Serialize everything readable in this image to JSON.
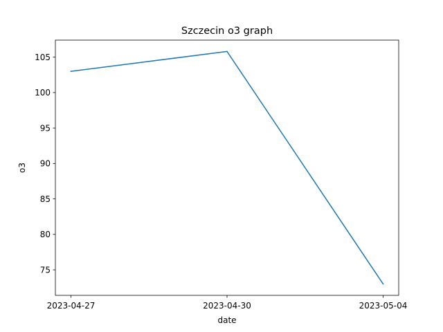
{
  "chart_data": {
    "type": "line",
    "title": "Szczecin o3 graph",
    "xlabel": "date",
    "ylabel": "o3",
    "categories": [
      "2023-04-27",
      "2023-04-30",
      "2023-05-04"
    ],
    "series": [
      {
        "name": "o3",
        "values": [
          103,
          105.8,
          73
        ],
        "color": "#1f77b4"
      }
    ],
    "ylim": [
      71.4,
      107.4
    ],
    "yticks": [
      75,
      80,
      85,
      90,
      95,
      100,
      105
    ],
    "grid": false,
    "legend": "none"
  }
}
